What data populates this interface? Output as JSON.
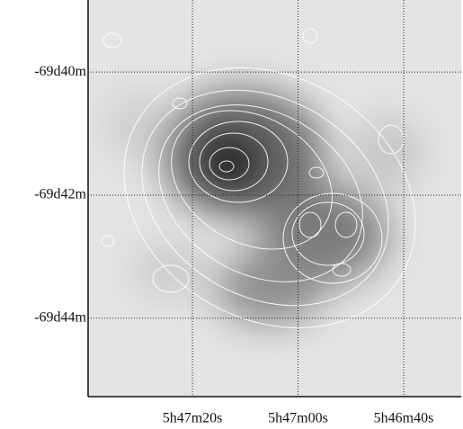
{
  "chart_data": {
    "type": "image",
    "xlim": [
      86.9156,
      86.6213
    ],
    "xticks": [
      {
        "value": 86.8333,
        "label": "5h47m20s"
      },
      {
        "value": 86.75,
        "label": "5h47m00s"
      },
      {
        "value": 86.6667,
        "label": "5h46m40s"
      }
    ],
    "ylim": [
      -69.7545,
      -69.6472
    ],
    "yticks": [
      {
        "value": -69.6667,
        "label": "-69d40m"
      },
      {
        "value": -69.7,
        "label": "-69d42m"
      },
      {
        "value": -69.7333,
        "label": "-69d44m"
      }
    ],
    "grid": true
  }
}
